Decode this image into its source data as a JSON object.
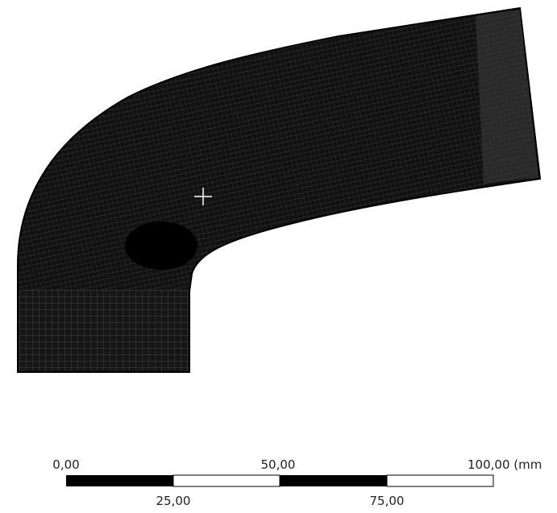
{
  "scale_bar": {
    "labels_top": [
      "0,00",
      "50,00",
      "100,00 (mm"
    ],
    "labels_bottom": [
      "25,00",
      "75,00"
    ]
  }
}
